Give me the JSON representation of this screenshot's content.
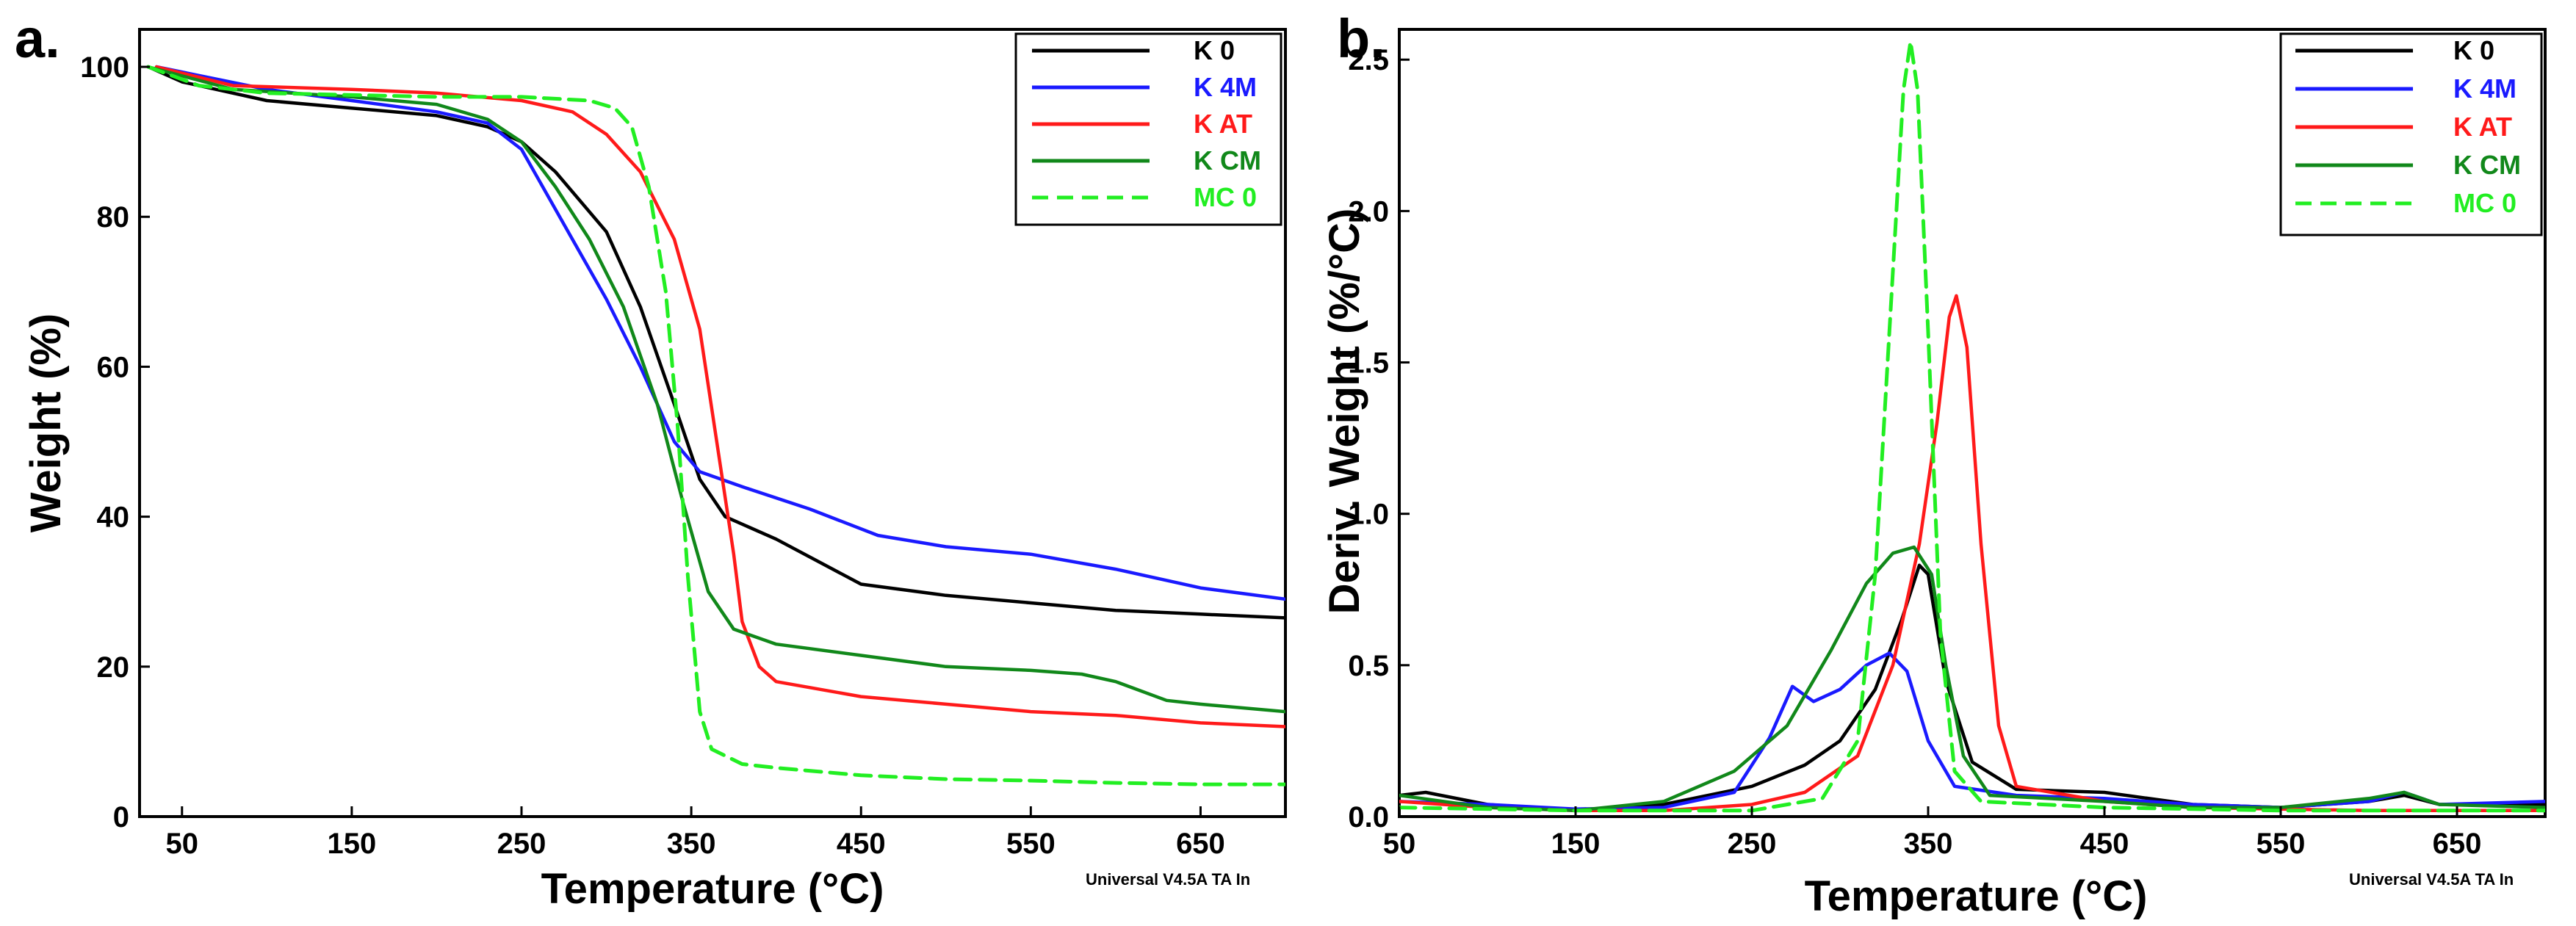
{
  "colors": {
    "K 0": "#000000",
    "K 4M": "#1a1aff",
    "K AT": "#ff1a1a",
    "K CM": "#11881a",
    "MC 0": "#22ee22"
  },
  "chart_data": [
    {
      "type": "line",
      "panel_label": "a.",
      "xlabel": "Temperature (°C)",
      "ylabel": "Weight (%)",
      "xlim": [
        25,
        700
      ],
      "ylim": [
        0,
        105
      ],
      "xticks": [
        50,
        150,
        250,
        350,
        450,
        550,
        650
      ],
      "yticks": [
        0,
        20,
        40,
        60,
        80,
        100
      ],
      "footer_note": "Universal V4.5A TA In",
      "legend_position": "top-right",
      "series": [
        {
          "name": "K 0",
          "style": "solid",
          "points": [
            [
              30,
              100
            ],
            [
              50,
              98
            ],
            [
              100,
              95.5
            ],
            [
              150,
              94.5
            ],
            [
              200,
              93.5
            ],
            [
              230,
              92
            ],
            [
              250,
              90
            ],
            [
              270,
              86
            ],
            [
              300,
              78
            ],
            [
              320,
              68
            ],
            [
              340,
              55
            ],
            [
              355,
              45
            ],
            [
              370,
              40
            ],
            [
              400,
              37
            ],
            [
              450,
              31
            ],
            [
              500,
              29.5
            ],
            [
              550,
              28.5
            ],
            [
              600,
              27.5
            ],
            [
              650,
              27
            ],
            [
              700,
              26.5
            ]
          ]
        },
        {
          "name": "K 4M",
          "style": "solid",
          "points": [
            [
              35,
              100
            ],
            [
              100,
              97
            ],
            [
              150,
              95.5
            ],
            [
              200,
              94
            ],
            [
              230,
              92.5
            ],
            [
              250,
              89
            ],
            [
              260,
              85
            ],
            [
              280,
              77
            ],
            [
              300,
              69
            ],
            [
              320,
              60
            ],
            [
              340,
              50
            ],
            [
              355,
              46
            ],
            [
              380,
              44
            ],
            [
              420,
              41
            ],
            [
              460,
              37.5
            ],
            [
              500,
              36
            ],
            [
              550,
              35
            ],
            [
              600,
              33
            ],
            [
              650,
              30.5
            ],
            [
              700,
              29
            ]
          ]
        },
        {
          "name": "K AT",
          "style": "solid",
          "points": [
            [
              35,
              100
            ],
            [
              80,
              97.5
            ],
            [
              150,
              97
            ],
            [
              200,
              96.5
            ],
            [
              250,
              95.5
            ],
            [
              280,
              94
            ],
            [
              300,
              91
            ],
            [
              320,
              86
            ],
            [
              340,
              77
            ],
            [
              355,
              65
            ],
            [
              365,
              50
            ],
            [
              375,
              35
            ],
            [
              380,
              26
            ],
            [
              390,
              20
            ],
            [
              400,
              18
            ],
            [
              450,
              16
            ],
            [
              500,
              15
            ],
            [
              550,
              14
            ],
            [
              600,
              13.5
            ],
            [
              650,
              12.5
            ],
            [
              700,
              12
            ]
          ]
        },
        {
          "name": "K CM",
          "style": "solid",
          "points": [
            [
              30,
              100
            ],
            [
              80,
              97
            ],
            [
              150,
              96
            ],
            [
              200,
              95
            ],
            [
              230,
              93
            ],
            [
              250,
              90
            ],
            [
              270,
              84
            ],
            [
              290,
              77
            ],
            [
              310,
              68
            ],
            [
              330,
              55
            ],
            [
              345,
              42
            ],
            [
              360,
              30
            ],
            [
              375,
              25
            ],
            [
              400,
              23
            ],
            [
              450,
              21.5
            ],
            [
              500,
              20
            ],
            [
              550,
              19.5
            ],
            [
              580,
              19
            ],
            [
              600,
              18
            ],
            [
              630,
              15.5
            ],
            [
              650,
              15
            ],
            [
              700,
              14
            ]
          ]
        },
        {
          "name": "MC 0",
          "style": "dashed",
          "points": [
            [
              30,
              100
            ],
            [
              60,
              97.5
            ],
            [
              100,
              96.5
            ],
            [
              200,
              96
            ],
            [
              250,
              96
            ],
            [
              290,
              95.5
            ],
            [
              305,
              94.5
            ],
            [
              315,
              92
            ],
            [
              325,
              84
            ],
            [
              335,
              70
            ],
            [
              342,
              52
            ],
            [
              348,
              32
            ],
            [
              355,
              14
            ],
            [
              362,
              9
            ],
            [
              380,
              7
            ],
            [
              400,
              6.5
            ],
            [
              450,
              5.5
            ],
            [
              500,
              5
            ],
            [
              550,
              4.8
            ],
            [
              600,
              4.5
            ],
            [
              650,
              4.3
            ],
            [
              700,
              4.3
            ]
          ]
        }
      ]
    },
    {
      "type": "line",
      "panel_label": "b.",
      "xlabel": "Temperature (°C)",
      "ylabel": "Deriv. Weight (%/°C)",
      "xlim": [
        50,
        700
      ],
      "ylim": [
        0,
        2.6
      ],
      "xticks": [
        50,
        150,
        250,
        350,
        450,
        550,
        650
      ],
      "yticks": [
        0.0,
        0.5,
        1.0,
        1.5,
        2.0,
        2.5
      ],
      "ytick_labels": [
        "0.0",
        "0.5",
        "1.0",
        "1.5",
        "2.0",
        "2.5"
      ],
      "footer_note": "Universal V4.5A TA In",
      "legend_position": "top-right",
      "series": [
        {
          "name": "K 0",
          "style": "solid",
          "points": [
            [
              50,
              0.07
            ],
            [
              65,
              0.08
            ],
            [
              100,
              0.04
            ],
            [
              150,
              0.02
            ],
            [
              200,
              0.04
            ],
            [
              250,
              0.1
            ],
            [
              280,
              0.17
            ],
            [
              300,
              0.25
            ],
            [
              320,
              0.42
            ],
            [
              335,
              0.65
            ],
            [
              345,
              0.83
            ],
            [
              350,
              0.8
            ],
            [
              360,
              0.45
            ],
            [
              375,
              0.18
            ],
            [
              400,
              0.09
            ],
            [
              450,
              0.08
            ],
            [
              500,
              0.04
            ],
            [
              550,
              0.03
            ],
            [
              600,
              0.05
            ],
            [
              620,
              0.07
            ],
            [
              640,
              0.04
            ],
            [
              700,
              0.04
            ]
          ]
        },
        {
          "name": "K 4M",
          "style": "solid",
          "points": [
            [
              50,
              0.05
            ],
            [
              100,
              0.04
            ],
            [
              150,
              0.025
            ],
            [
              200,
              0.03
            ],
            [
              240,
              0.08
            ],
            [
              260,
              0.26
            ],
            [
              273,
              0.43
            ],
            [
              285,
              0.38
            ],
            [
              300,
              0.42
            ],
            [
              315,
              0.5
            ],
            [
              328,
              0.54
            ],
            [
              338,
              0.48
            ],
            [
              350,
              0.25
            ],
            [
              365,
              0.1
            ],
            [
              400,
              0.07
            ],
            [
              450,
              0.06
            ],
            [
              500,
              0.04
            ],
            [
              550,
              0.03
            ],
            [
              600,
              0.05
            ],
            [
              620,
              0.08
            ],
            [
              640,
              0.04
            ],
            [
              700,
              0.05
            ]
          ]
        },
        {
          "name": "K AT",
          "style": "solid",
          "points": [
            [
              50,
              0.05
            ],
            [
              100,
              0.03
            ],
            [
              150,
              0.02
            ],
            [
              200,
              0.02
            ],
            [
              250,
              0.04
            ],
            [
              280,
              0.08
            ],
            [
              310,
              0.2
            ],
            [
              330,
              0.5
            ],
            [
              345,
              0.9
            ],
            [
              355,
              1.3
            ],
            [
              362,
              1.65
            ],
            [
              366,
              1.72
            ],
            [
              372,
              1.55
            ],
            [
              380,
              0.9
            ],
            [
              390,
              0.3
            ],
            [
              400,
              0.1
            ],
            [
              450,
              0.05
            ],
            [
              500,
              0.03
            ],
            [
              600,
              0.02
            ],
            [
              700,
              0.02
            ]
          ]
        },
        {
          "name": "K CM",
          "style": "solid",
          "points": [
            [
              50,
              0.07
            ],
            [
              100,
              0.03
            ],
            [
              150,
              0.02
            ],
            [
              200,
              0.05
            ],
            [
              240,
              0.15
            ],
            [
              270,
              0.3
            ],
            [
              295,
              0.55
            ],
            [
              315,
              0.77
            ],
            [
              330,
              0.87
            ],
            [
              342,
              0.89
            ],
            [
              352,
              0.8
            ],
            [
              360,
              0.5
            ],
            [
              370,
              0.2
            ],
            [
              385,
              0.07
            ],
            [
              450,
              0.05
            ],
            [
              500,
              0.03
            ],
            [
              550,
              0.03
            ],
            [
              600,
              0.06
            ],
            [
              620,
              0.08
            ],
            [
              640,
              0.04
            ],
            [
              700,
              0.03
            ]
          ]
        },
        {
          "name": "MC 0",
          "style": "dashed",
          "points": [
            [
              50,
              0.03
            ],
            [
              150,
              0.02
            ],
            [
              250,
              0.02
            ],
            [
              290,
              0.06
            ],
            [
              310,
              0.25
            ],
            [
              320,
              0.8
            ],
            [
              330,
              1.8
            ],
            [
              336,
              2.4
            ],
            [
              340,
              2.56
            ],
            [
              344,
              2.4
            ],
            [
              350,
              1.6
            ],
            [
              357,
              0.6
            ],
            [
              365,
              0.15
            ],
            [
              380,
              0.05
            ],
            [
              450,
              0.03
            ],
            [
              550,
              0.02
            ],
            [
              700,
              0.02
            ]
          ]
        }
      ]
    }
  ]
}
